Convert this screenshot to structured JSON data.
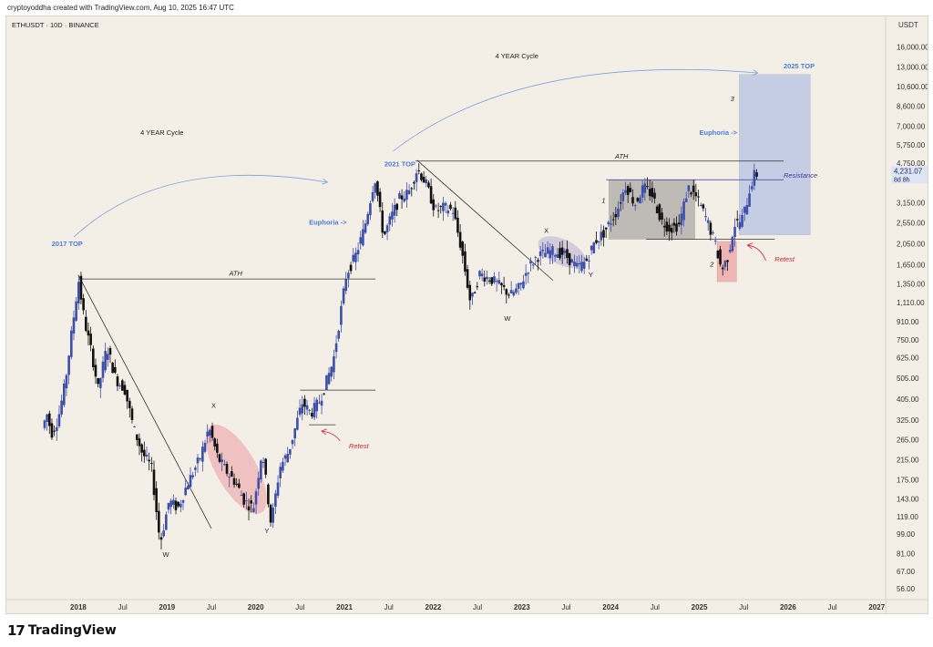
{
  "header": {
    "text": "cryptoyoddha created with TradingView.com, Aug 10, 2025 16:47 UTC"
  },
  "footer": {
    "logo_mark": "17",
    "logo_text": "TradingView"
  },
  "chart_data": {
    "type": "candlestick",
    "title": "ETHUSDT · 10D · BINANCE",
    "currency": "USDT",
    "y_scale": "log",
    "ylim": [
      50,
      20000
    ],
    "y_ticks": [
      {
        "v": 16000,
        "label": "16,000.00"
      },
      {
        "v": 13000,
        "label": "13,000.00"
      },
      {
        "v": 10600,
        "label": "10,600.00"
      },
      {
        "v": 8600,
        "label": "8,600.00"
      },
      {
        "v": 7000,
        "label": "7,000.00"
      },
      {
        "v": 5750,
        "label": "5,750.00"
      },
      {
        "v": 4750,
        "label": "4,750.00"
      },
      {
        "v": 3150,
        "label": "3,150.00"
      },
      {
        "v": 2550,
        "label": "2,550.00"
      },
      {
        "v": 2050,
        "label": "2,050.00"
      },
      {
        "v": 1650,
        "label": "1,650.00"
      },
      {
        "v": 1350,
        "label": "1,350.00"
      },
      {
        "v": 1110,
        "label": "1,110.00"
      },
      {
        "v": 910,
        "label": "910.00"
      },
      {
        "v": 750,
        "label": "750.00"
      },
      {
        "v": 625,
        "label": "625.00"
      },
      {
        "v": 505,
        "label": "505.00"
      },
      {
        "v": 405,
        "label": "405.00"
      },
      {
        "v": 325,
        "label": "325.00"
      },
      {
        "v": 265,
        "label": "265.00"
      },
      {
        "v": 215,
        "label": "215.00"
      },
      {
        "v": 175,
        "label": "175.00"
      },
      {
        "v": 143,
        "label": "143.00"
      },
      {
        "v": 119,
        "label": "119.00"
      },
      {
        "v": 99,
        "label": "99.00"
      },
      {
        "v": 81,
        "label": "81.00"
      },
      {
        "v": 67,
        "label": "67.00"
      },
      {
        "v": 56,
        "label": "56.00"
      }
    ],
    "x_ticks": [
      {
        "t": 2018.0,
        "label": "2018",
        "bold": true
      },
      {
        "t": 2018.5,
        "label": "Jul"
      },
      {
        "t": 2019.0,
        "label": "2019",
        "bold": true
      },
      {
        "t": 2019.5,
        "label": "Jul"
      },
      {
        "t": 2020.0,
        "label": "2020",
        "bold": true
      },
      {
        "t": 2020.5,
        "label": "Jul"
      },
      {
        "t": 2021.0,
        "label": "2021",
        "bold": true
      },
      {
        "t": 2021.5,
        "label": "Jul"
      },
      {
        "t": 2022.0,
        "label": "2022",
        "bold": true
      },
      {
        "t": 2022.5,
        "label": "Jul"
      },
      {
        "t": 2023.0,
        "label": "2023",
        "bold": true
      },
      {
        "t": 2023.5,
        "label": "Jul"
      },
      {
        "t": 2024.0,
        "label": "2024",
        "bold": true
      },
      {
        "t": 2024.5,
        "label": "Jul"
      },
      {
        "t": 2025.0,
        "label": "2025",
        "bold": true
      },
      {
        "t": 2025.5,
        "label": "Jul"
      },
      {
        "t": 2026.0,
        "label": "2026",
        "bold": true
      },
      {
        "t": 2026.5,
        "label": "Jul"
      },
      {
        "t": 2027.0,
        "label": "2027",
        "bold": true
      }
    ],
    "xlim": [
      2017.6,
      2027.1
    ],
    "price_path": [
      [
        2017.62,
        300
      ],
      [
        2017.68,
        350
      ],
      [
        2017.72,
        280
      ],
      [
        2017.8,
        330
      ],
      [
        2017.88,
        480
      ],
      [
        2017.95,
        800
      ],
      [
        2018.03,
        1400
      ],
      [
        2018.1,
        900
      ],
      [
        2018.18,
        650
      ],
      [
        2018.25,
        450
      ],
      [
        2018.35,
        700
      ],
      [
        2018.45,
        500
      ],
      [
        2018.55,
        450
      ],
      [
        2018.65,
        300
      ],
      [
        2018.75,
        230
      ],
      [
        2018.85,
        200
      ],
      [
        2018.95,
        90
      ],
      [
        2019.05,
        140
      ],
      [
        2019.15,
        130
      ],
      [
        2019.25,
        165
      ],
      [
        2019.4,
        220
      ],
      [
        2019.5,
        300
      ],
      [
        2019.6,
        220
      ],
      [
        2019.7,
        190
      ],
      [
        2019.8,
        170
      ],
      [
        2019.9,
        140
      ],
      [
        2020.0,
        130
      ],
      [
        2020.1,
        240
      ],
      [
        2020.2,
        110
      ],
      [
        2020.3,
        200
      ],
      [
        2020.4,
        235
      ],
      [
        2020.55,
        390
      ],
      [
        2020.65,
        350
      ],
      [
        2020.75,
        400
      ],
      [
        2020.9,
        600
      ],
      [
        2021.05,
        1500
      ],
      [
        2021.15,
        1800
      ],
      [
        2021.25,
        2400
      ],
      [
        2021.37,
        4100
      ],
      [
        2021.47,
        2200
      ],
      [
        2021.55,
        2700
      ],
      [
        2021.65,
        3300
      ],
      [
        2021.75,
        3500
      ],
      [
        2021.85,
        4500
      ],
      [
        2021.95,
        3800
      ],
      [
        2022.05,
        2900
      ],
      [
        2022.15,
        3000
      ],
      [
        2022.25,
        2900
      ],
      [
        2022.35,
        1900
      ],
      [
        2022.45,
        1100
      ],
      [
        2022.55,
        1500
      ],
      [
        2022.7,
        1400
      ],
      [
        2022.8,
        1300
      ],
      [
        2022.9,
        1200
      ],
      [
        2023.0,
        1300
      ],
      [
        2023.1,
        1600
      ],
      [
        2023.2,
        1800
      ],
      [
        2023.35,
        1900
      ],
      [
        2023.5,
        1850
      ],
      [
        2023.65,
        1600
      ],
      [
        2023.75,
        1700
      ],
      [
        2023.85,
        2100
      ],
      [
        2023.95,
        2300
      ],
      [
        2024.1,
        2900
      ],
      [
        2024.2,
        3800
      ],
      [
        2024.3,
        3100
      ],
      [
        2024.4,
        3700
      ],
      [
        2024.5,
        3400
      ],
      [
        2024.6,
        2600
      ],
      [
        2024.7,
        2400
      ],
      [
        2024.8,
        2500
      ],
      [
        2024.9,
        3700
      ],
      [
        2025.0,
        3300
      ],
      [
        2025.1,
        2700
      ],
      [
        2025.2,
        2100
      ],
      [
        2025.28,
        1550
      ],
      [
        2025.35,
        1800
      ],
      [
        2025.42,
        2500
      ],
      [
        2025.5,
        2600
      ],
      [
        2025.55,
        3000
      ],
      [
        2025.6,
        3700
      ],
      [
        2025.65,
        4231
      ]
    ],
    "current_price": {
      "value": 4231.07,
      "label": "4,231.07",
      "countdown": "8d 8h"
    },
    "hlines": [
      {
        "label": "ATH",
        "price": 1420,
        "t1": 2018.0,
        "t2": 2021.35,
        "color": "#333333"
      },
      {
        "label": "ATH",
        "price": 4860,
        "t1": 2021.8,
        "t2": 2025.95,
        "color": "#333333"
      },
      {
        "label": "Resistance",
        "price": 4000,
        "t1": 2023.95,
        "t2": 2025.95,
        "color": "#3a3aa0"
      },
      {
        "label": "",
        "price": 445,
        "t1": 2020.5,
        "t2": 2021.35,
        "color": "#333333"
      },
      {
        "label": "",
        "price": 310,
        "t1": 2020.6,
        "t2": 2020.9,
        "color": "#333333"
      },
      {
        "label": "",
        "price": 2150,
        "t1": 2024.4,
        "t2": 2025.85,
        "color": "#333333"
      }
    ],
    "trendlines": [
      {
        "t1": 2018.0,
        "p1": 1480,
        "t2": 2019.5,
        "p2": 105
      },
      {
        "t1": 2021.82,
        "p1": 4900,
        "t2": 2023.35,
        "p2": 1400
      }
    ],
    "zones": [
      {
        "t1": 2023.98,
        "t2": 2024.95,
        "p1": 4000,
        "p2": 2150,
        "fill": "rgba(90,90,90,0.35)"
      },
      {
        "t1": 2025.2,
        "t2": 2025.42,
        "p1": 2100,
        "p2": 1380,
        "fill": "rgba(230,110,120,0.45)"
      },
      {
        "t1": 2025.45,
        "t2": 2026.25,
        "p1": 12000,
        "p2": 2250,
        "fill": "rgba(120,150,230,0.38)"
      }
    ],
    "ellipses": [
      {
        "t": 2019.78,
        "p": 195,
        "rx": 22,
        "ry": 55,
        "rot": -30,
        "fill": "rgba(230,110,120,0.35)"
      },
      {
        "t": 2023.45,
        "p": 1880,
        "rx": 28,
        "ry": 14,
        "rot": 25,
        "fill": "rgba(150,140,200,0.35)"
      }
    ],
    "arcs": [
      {
        "t1": 2017.95,
        "p1": 2200,
        "t2": 2020.8,
        "p2": 3900,
        "bulge": 5200
      },
      {
        "t1": 2021.55,
        "p1": 5400,
        "t2": 2025.65,
        "p2": 12200,
        "bulge": 15000
      }
    ],
    "retest_arrows": [
      {
        "from_t": 2020.95,
        "from_p": 262,
        "to_t": 2020.75,
        "to_p": 290
      },
      {
        "from_t": 2025.75,
        "from_p": 1720,
        "to_t": 2025.55,
        "to_p": 2020
      }
    ],
    "annotations": [
      {
        "text": "ETHUSDT · 10D · BINANCE",
        "kind": "corner"
      },
      {
        "text": "2017 TOP",
        "t": 2017.7,
        "p": 2000,
        "color": "#4c7cd8"
      },
      {
        "text": "2021 TOP",
        "t": 2021.45,
        "p": 4600,
        "color": "#4c7cd8"
      },
      {
        "text": "2025 TOP",
        "t": 2025.95,
        "p": 12800,
        "color": "#4c7cd8"
      },
      {
        "text": "4 YEAR Cycle",
        "t": 2018.7,
        "p": 6400,
        "color": "#222222"
      },
      {
        "text": "4 YEAR Cycle",
        "t": 2022.7,
        "p": 14200,
        "color": "#222222"
      },
      {
        "text": "Euphoria ->",
        "t": 2020.6,
        "p": 2500,
        "color": "#4c7cd8"
      },
      {
        "text": "Euphoria ->",
        "t": 2025.0,
        "p": 6400,
        "color": "#4c7cd8"
      },
      {
        "text": "W",
        "t": 2018.95,
        "p": 78,
        "color": "#222222"
      },
      {
        "text": "X",
        "t": 2019.5,
        "p": 370,
        "color": "#222222"
      },
      {
        "text": "Y",
        "t": 2020.1,
        "p": 100,
        "color": "#222222"
      },
      {
        "text": "W",
        "t": 2022.8,
        "p": 920,
        "color": "#222222"
      },
      {
        "text": "X",
        "t": 2023.25,
        "p": 2300,
        "color": "#222222"
      },
      {
        "text": "Y",
        "t": 2023.75,
        "p": 1450,
        "color": "#222222"
      },
      {
        "text": "1",
        "t": 2023.9,
        "p": 3150,
        "color": "#222222"
      },
      {
        "text": "2",
        "t": 2025.12,
        "p": 1620,
        "color": "#222222"
      },
      {
        "text": "3",
        "t": 2025.35,
        "p": 9100,
        "color": "#222222"
      },
      {
        "text": "Retest",
        "t": 2021.05,
        "p": 242,
        "color": "#cc2233"
      },
      {
        "text": "Retest",
        "t": 2025.85,
        "p": 1700,
        "color": "#cc2233"
      },
      {
        "text": "ATH",
        "t": 2019.7,
        "p": 1470,
        "color": "#222222"
      },
      {
        "text": "ATH",
        "t": 2024.05,
        "p": 5000,
        "color": "#222222"
      },
      {
        "text": "Resistance",
        "t": 2025.95,
        "p": 4080,
        "color": "#3a3aa0"
      }
    ]
  }
}
